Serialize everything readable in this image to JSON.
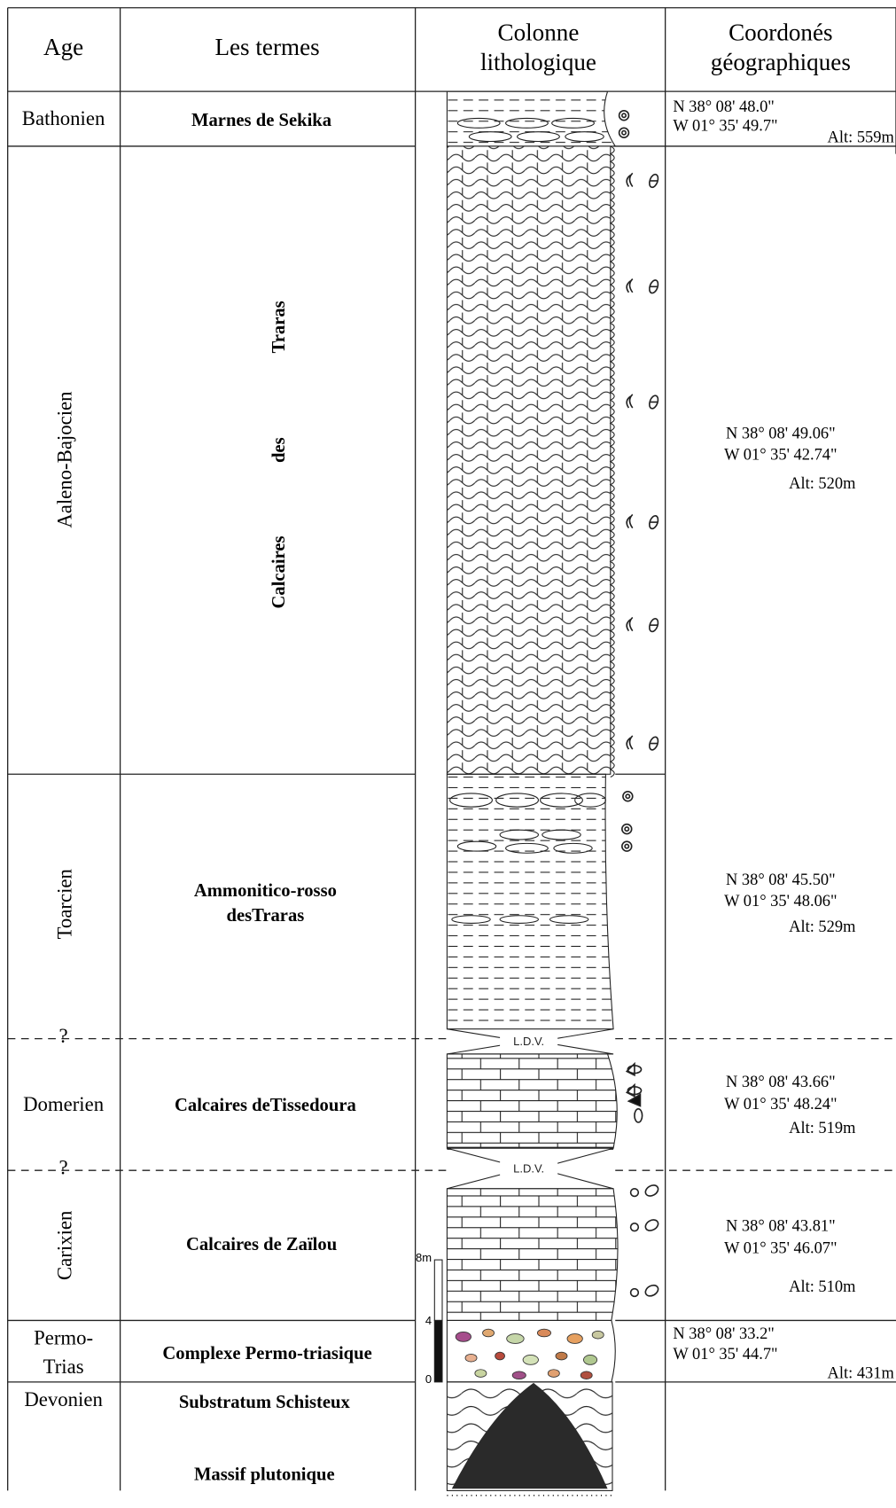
{
  "header": {
    "age": "Age",
    "terms": "Les termes",
    "column": [
      "Colonne",
      "lithologique"
    ],
    "coords": [
      "Coordonés",
      "géographiques"
    ]
  },
  "units": [
    {
      "age": [
        "Bathonien"
      ],
      "term": [
        "Marnes de Sekika"
      ],
      "coords": [
        "N  38° 08' 48.0\"",
        "W 01° 35' 49.7\""
      ],
      "alt": "Alt: 559m"
    },
    {
      "age": [
        "Aaleno-Bajocien"
      ],
      "term": [
        "Calcaires",
        "des",
        "Traras"
      ],
      "coords": [
        "N  38° 08' 49.06\"",
        "W 01° 35' 42.74\""
      ],
      "alt": "Alt: 520m"
    },
    {
      "age": [
        "Toarcien"
      ],
      "term": [
        "Ammonitico-rosso",
        "desTraras"
      ],
      "coords": [
        "N  38° 08' 45.50\"",
        "W 01° 35' 48.06\""
      ],
      "alt": "Alt: 529m"
    },
    {
      "age": [
        "Domerien"
      ],
      "term": [
        "Calcaires deTissedoura"
      ],
      "coords": [
        "N  38° 08' 43.66\"",
        "W 01° 35' 48.24\""
      ],
      "alt": "Alt: 519m"
    },
    {
      "age": [
        "Carixien"
      ],
      "term": [
        "Calcaires de Zaïlou"
      ],
      "coords": [
        "N  38° 08' 43.81\"",
        "W 01° 35' 46.07\""
      ],
      "alt": "Alt: 510m"
    },
    {
      "age": [
        "Permo-",
        "Trias"
      ],
      "term": [
        "Complexe Permo-triasique"
      ],
      "coords": [
        "N  38° 08' 33.2\"",
        "W 01° 35' 44.7\""
      ],
      "alt": "Alt: 431m"
    },
    {
      "age": [
        "Devonien"
      ],
      "term": [
        "Substratum Schisteux",
        "Massif plutonique"
      ]
    }
  ],
  "uncertain": [
    "?",
    "?"
  ],
  "ldv": [
    "L.D.V.",
    "L.D.V."
  ],
  "scale": [
    "8m",
    "4",
    "0"
  ]
}
